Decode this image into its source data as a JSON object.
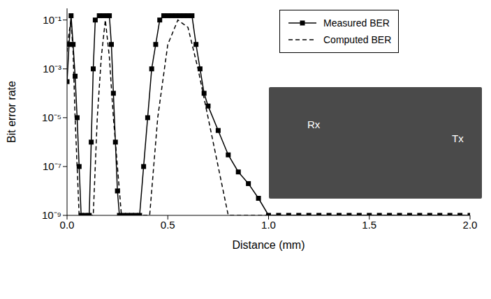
{
  "chart_data": {
    "type": "line",
    "x_label": "Distance (mm)",
    "y_label": "Bit error rate",
    "log": "y",
    "grid": false,
    "legend": "upper right",
    "annotations": [
      "Rx",
      "Tx"
    ],
    "xlim": [
      0,
      2
    ],
    "xticks": [
      {
        "value": 0,
        "label": "0.0"
      },
      0.5,
      {
        "value": 1,
        "label": "1.0"
      },
      1.5,
      {
        "value": 2,
        "label": "2.0"
      }
    ],
    "ylim": [
      1e-09,
      0.3
    ],
    "yticks": [
      {
        "value": 1e-09,
        "label": "10⁻⁹"
      },
      {
        "value": 1e-07,
        "label": "10⁻⁷"
      },
      {
        "value": 1e-05,
        "label": "10⁻⁵"
      },
      {
        "value": 0.001,
        "label": "10⁻³"
      },
      {
        "value": 0.1,
        "label": "10⁻¹"
      }
    ],
    "series": [
      {
        "name": "Measured BER",
        "color": "#000000",
        "marker": "square",
        "line_style": "solid",
        "x": [
          0,
          0.01,
          0.02,
          0.03,
          0.04,
          0.05,
          0.06,
          0.07,
          0.09,
          0.11,
          0.12,
          0.13,
          0.14,
          0.16,
          0.18,
          0.2,
          0.21,
          0.22,
          0.23,
          0.24,
          0.25,
          0.26,
          0.28,
          0.3,
          0.32,
          0.34,
          0.36,
          0.38,
          0.4,
          0.42,
          0.44,
          0.46,
          0.48,
          0.5,
          0.52,
          0.54,
          0.56,
          0.58,
          0.6,
          0.62,
          0.64,
          0.66,
          0.68,
          0.7,
          0.75,
          0.8,
          0.85,
          0.9,
          0.95,
          1.0,
          1.05,
          1.1,
          1.15,
          1.2,
          1.25,
          1.3,
          1.35,
          1.4,
          1.45,
          1.5,
          1.55,
          1.6,
          1.65,
          1.7,
          1.75,
          1.8,
          1.85,
          1.9,
          1.95,
          2.0
        ],
        "values": [
          0.0003,
          0.01,
          0.15,
          0.01,
          0.0005,
          1e-05,
          1e-07,
          1e-09,
          1e-09,
          1e-09,
          1e-06,
          0.001,
          0.1,
          0.15,
          0.15,
          0.15,
          0.15,
          0.01,
          0.0001,
          1e-06,
          1e-08,
          1e-09,
          1e-09,
          1e-09,
          1e-09,
          1e-09,
          1e-09,
          1e-07,
          1e-05,
          0.001,
          0.01,
          0.1,
          0.15,
          0.15,
          0.15,
          0.15,
          0.15,
          0.15,
          0.15,
          0.15,
          0.01,
          0.001,
          0.0001,
          3e-05,
          3e-06,
          3e-07,
          6e-08,
          2e-08,
          5e-09,
          1e-09,
          1e-09,
          1e-09,
          1e-09,
          1e-09,
          1e-09,
          1e-09,
          1e-09,
          1e-09,
          1e-09,
          1e-09,
          1e-09,
          1e-09,
          1e-09,
          1e-09,
          1e-09,
          1e-09,
          1e-09,
          1e-09,
          1e-09,
          1e-09
        ]
      },
      {
        "name": "Computed BER",
        "color": "#000000",
        "marker": "none",
        "line_style": "dashed",
        "x": [
          0,
          0.01,
          0.02,
          0.03,
          0.04,
          0.05,
          0.06,
          0.1,
          0.13,
          0.15,
          0.17,
          0.19,
          0.21,
          0.23,
          0.25,
          0.27,
          0.41,
          0.45,
          0.5,
          0.55,
          0.6,
          0.65,
          0.7,
          0.75,
          0.8,
          1.0,
          1.5,
          2.0
        ],
        "values": [
          0.005,
          0.03,
          0.1,
          0.005,
          1e-05,
          1e-07,
          1e-09,
          1e-09,
          1e-09,
          1e-05,
          0.003,
          0.1,
          0.003,
          1e-05,
          1e-07,
          1e-09,
          1e-09,
          1e-05,
          0.01,
          0.1,
          0.05,
          0.001,
          1e-05,
          1e-07,
          1e-09,
          1e-09,
          1e-09,
          1e-09
        ]
      }
    ]
  }
}
